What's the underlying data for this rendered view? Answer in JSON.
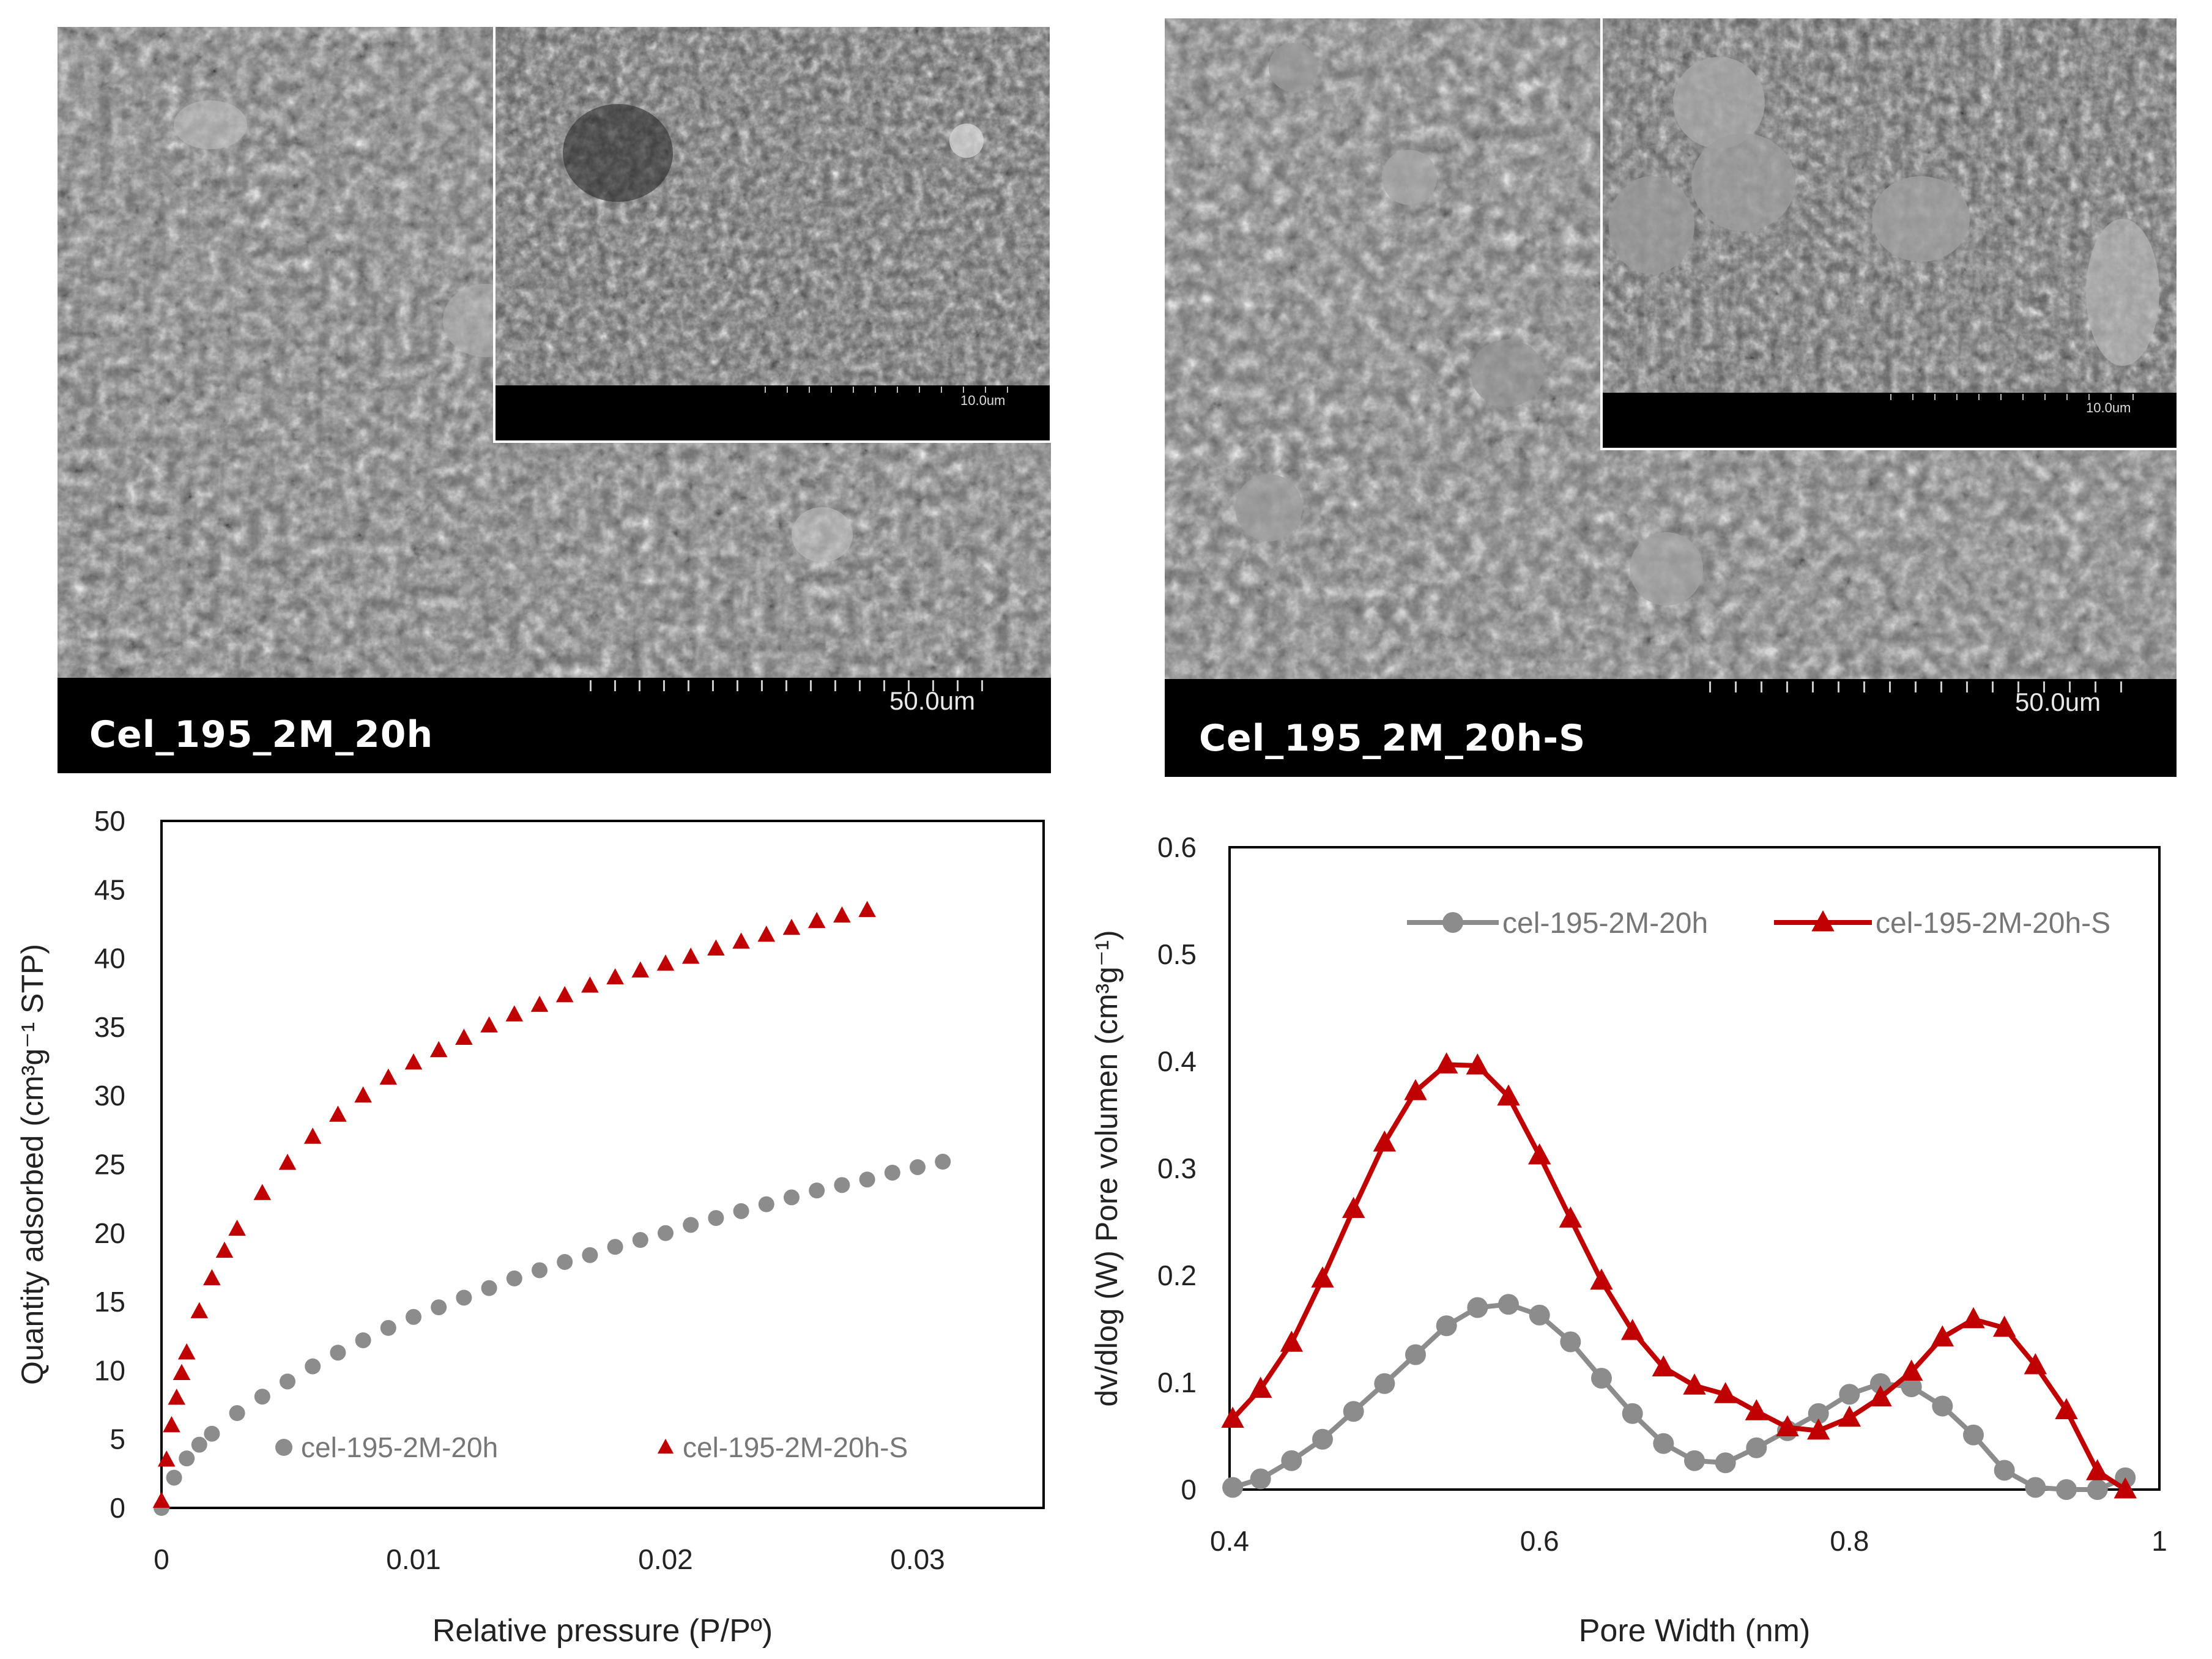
{
  "micrographs": [
    {
      "id": "left",
      "label": "Cel_195_2M_20h",
      "scale_main": "50.0um",
      "scale_inset": "10.0um"
    },
    {
      "id": "right",
      "label": "Cel_195_2M_20h-S",
      "scale_main": "50.0um",
      "scale_inset": "10.0um"
    }
  ],
  "colors": {
    "gray": "#8c8c8c",
    "red": "#c00000",
    "axis": "#000000"
  },
  "chart_data": [
    {
      "type": "scatter",
      "xlabel": "Relative pressure (P/Pº)",
      "ylabel": "Quantity adsorbed (cm³g⁻¹ STP)",
      "xlim": [
        0,
        0.035
      ],
      "ylim": [
        0,
        50
      ],
      "xticks": [
        0,
        0.01,
        0.02,
        0.03
      ],
      "xtick_labels": [
        "0",
        "0.01",
        "0.02",
        "0.03"
      ],
      "yticks": [
        0,
        5,
        10,
        15,
        20,
        25,
        30,
        35,
        40,
        45,
        50
      ],
      "ytick_labels": [
        "0",
        "5",
        "10",
        "15",
        "20",
        "25",
        "30",
        "35",
        "40",
        "45",
        "50"
      ],
      "legend_position": "bottom",
      "series": [
        {
          "name": "cel-195-2M-20h",
          "marker": "circle",
          "color": "#8c8c8c",
          "x": [
            0,
            0.0005,
            0.001,
            0.0015,
            0.002,
            0.003,
            0.004,
            0.005,
            0.006,
            0.007,
            0.008,
            0.009,
            0.01,
            0.011,
            0.012,
            0.013,
            0.014,
            0.015,
            0.016,
            0.017,
            0.018,
            0.019,
            0.02,
            0.021,
            0.022,
            0.023,
            0.024,
            0.025,
            0.026,
            0.027,
            0.028,
            0.029,
            0.03,
            0.031
          ],
          "y": [
            0,
            2.2,
            3.6,
            4.6,
            5.4,
            6.9,
            8.1,
            9.2,
            10.3,
            11.3,
            12.2,
            13.1,
            13.9,
            14.6,
            15.3,
            16.0,
            16.7,
            17.3,
            17.9,
            18.4,
            19.0,
            19.5,
            20.0,
            20.6,
            21.1,
            21.6,
            22.1,
            22.6,
            23.1,
            23.5,
            23.9,
            24.4,
            24.8,
            25.2
          ]
        },
        {
          "name": "cel-195-2M-20h-S",
          "marker": "triangle",
          "color": "#c00000",
          "x": [
            0,
            0.0002,
            0.0004,
            0.0006,
            0.0008,
            0.001,
            0.0015,
            0.002,
            0.0025,
            0.003,
            0.004,
            0.005,
            0.006,
            0.007,
            0.008,
            0.009,
            0.01,
            0.011,
            0.012,
            0.013,
            0.014,
            0.015,
            0.016,
            0.017,
            0.018,
            0.019,
            0.02,
            0.021,
            0.022,
            0.023,
            0.024,
            0.025,
            0.026,
            0.027,
            0.028
          ],
          "y": [
            0.5,
            3.5,
            6.0,
            8.0,
            9.8,
            11.3,
            14.3,
            16.7,
            18.7,
            20.3,
            22.9,
            25.1,
            27.0,
            28.6,
            30.0,
            31.3,
            32.4,
            33.3,
            34.2,
            35.1,
            35.9,
            36.6,
            37.3,
            38.0,
            38.6,
            39.1,
            39.6,
            40.1,
            40.7,
            41.2,
            41.7,
            42.2,
            42.7,
            43.1,
            43.5
          ]
        }
      ]
    },
    {
      "type": "line",
      "xlabel": "Pore Width (nm)",
      "ylabel": "dv/dlog (W) Pore volumen (cm³g⁻¹)",
      "xlim": [
        0.4,
        1.0
      ],
      "ylim": [
        0,
        0.6
      ],
      "xticks": [
        0.4,
        0.6,
        0.8,
        1.0
      ],
      "xtick_labels": [
        "0.4",
        "0.6",
        "0.8",
        "1"
      ],
      "yticks": [
        0,
        0.1,
        0.2,
        0.3,
        0.4,
        0.5,
        0.6
      ],
      "ytick_labels": [
        "0",
        "0.1",
        "0.2",
        "0.3",
        "0.4",
        "0.5",
        "0.6"
      ],
      "legend_position": "top",
      "series": [
        {
          "name": "cel-195-2M-20h",
          "marker": "circle",
          "color": "#8c8c8c",
          "x": [
            0.402,
            0.42,
            0.44,
            0.46,
            0.48,
            0.5,
            0.52,
            0.54,
            0.56,
            0.58,
            0.6,
            0.62,
            0.64,
            0.66,
            0.68,
            0.7,
            0.72,
            0.74,
            0.76,
            0.78,
            0.8,
            0.82,
            0.84,
            0.86,
            0.88,
            0.9,
            0.92,
            0.94,
            0.96,
            0.978
          ],
          "y": [
            0.002,
            0.01,
            0.027,
            0.047,
            0.073,
            0.099,
            0.126,
            0.153,
            0.17,
            0.173,
            0.163,
            0.138,
            0.104,
            0.071,
            0.043,
            0.027,
            0.025,
            0.039,
            0.055,
            0.071,
            0.089,
            0.099,
            0.096,
            0.078,
            0.051,
            0.018,
            0.002,
            0.0,
            0.0,
            0.011
          ]
        },
        {
          "name": "cel-195-2M-20h-S",
          "marker": "triangle",
          "color": "#c00000",
          "x": [
            0.402,
            0.42,
            0.44,
            0.46,
            0.48,
            0.5,
            0.52,
            0.54,
            0.56,
            0.58,
            0.6,
            0.62,
            0.64,
            0.66,
            0.68,
            0.7,
            0.72,
            0.74,
            0.76,
            0.78,
            0.8,
            0.82,
            0.84,
            0.86,
            0.88,
            0.9,
            0.92,
            0.94,
            0.96,
            0.978
          ],
          "y": [
            0.066,
            0.094,
            0.137,
            0.197,
            0.262,
            0.324,
            0.372,
            0.397,
            0.396,
            0.367,
            0.312,
            0.253,
            0.195,
            0.148,
            0.114,
            0.097,
            0.089,
            0.073,
            0.058,
            0.055,
            0.067,
            0.086,
            0.11,
            0.142,
            0.159,
            0.151,
            0.116,
            0.074,
            0.017,
            0.0
          ]
        }
      ]
    }
  ]
}
